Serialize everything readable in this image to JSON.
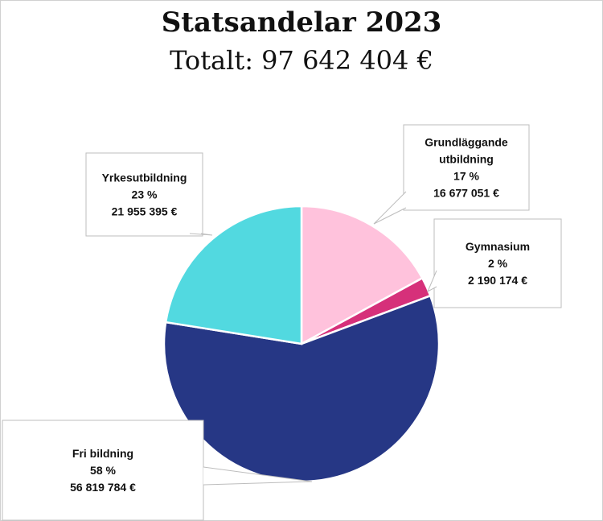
{
  "chart_data": {
    "type": "pie",
    "title": "Statsandelar 2023",
    "subtitle": "Totalt: 97 642 404 €",
    "start_angle_deg": 0,
    "direction": "clockwise",
    "slices": [
      {
        "label": "Grundläggande utbildning",
        "label_lines": [
          "Grundläggande",
          "utbildning"
        ],
        "percent": "17 %",
        "value": 16677051,
        "value_text": "16 677 051 €",
        "color": "#ffc2dc"
      },
      {
        "label": "Gymnasium",
        "label_lines": [
          "Gymnasium"
        ],
        "percent": "2 %",
        "value": 2190174,
        "value_text": "2 190 174 €",
        "color": "#d6307a"
      },
      {
        "label": "Fri bildning",
        "label_lines": [
          "Fri bildning"
        ],
        "percent": "58 %",
        "value": 56819784,
        "value_text": "56 819 784 €",
        "color": "#263785"
      },
      {
        "label": "Yrkesutbildning",
        "label_lines": [
          "Yrkesutbildning"
        ],
        "percent": "23 %",
        "value": 21955395,
        "value_text": "21 955 395 €",
        "color": "#52d9e0"
      }
    ]
  }
}
